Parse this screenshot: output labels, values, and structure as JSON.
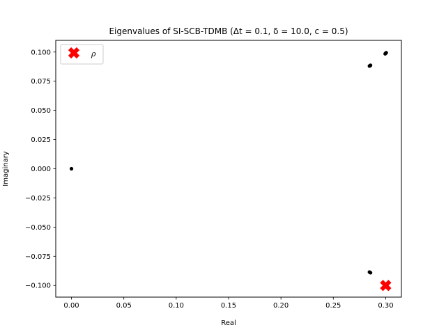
{
  "chart_data": {
    "type": "scatter",
    "title": "Eigenvalues of SI-SCB-TDMB (Δt = 0.1, δ = 10.0, c = 0.5)",
    "xlabel": "Real",
    "ylabel": "Imaginary",
    "xlim": [
      -0.015,
      0.315
    ],
    "ylim": [
      -0.11,
      0.11
    ],
    "xticks": [
      0.0,
      0.05,
      0.1,
      0.15,
      0.2,
      0.25,
      0.3
    ],
    "xtick_labels": [
      "0.00",
      "0.05",
      "0.10",
      "0.15",
      "0.20",
      "0.25",
      "0.30"
    ],
    "yticks": [
      0.1,
      0.075,
      0.05,
      0.025,
      0.0,
      -0.025,
      -0.05,
      -0.075,
      -0.1
    ],
    "ytick_labels": [
      "0.100",
      "0.075",
      "0.050",
      "0.025",
      "0.000",
      "−0.025",
      "−0.050",
      "−0.075",
      "−0.100"
    ],
    "grid": false,
    "legend_position": "top-left",
    "series": [
      {
        "type": "points",
        "color": "#000000",
        "marker": "dot",
        "points": [
          {
            "x": 0.0,
            "y": 0.0
          },
          {
            "x": 0.2845,
            "y": 0.088
          },
          {
            "x": 0.285,
            "y": 0.0883
          },
          {
            "x": 0.2855,
            "y": 0.0886
          },
          {
            "x": 0.2845,
            "y": -0.0885
          },
          {
            "x": 0.285,
            "y": -0.0888
          },
          {
            "x": 0.2855,
            "y": -0.0891
          },
          {
            "x": 0.2995,
            "y": 0.0985
          },
          {
            "x": 0.3,
            "y": 0.099
          },
          {
            "x": 0.3005,
            "y": 0.0994
          }
        ]
      },
      {
        "name": "ρ",
        "type": "points",
        "color": "#ff0000",
        "marker": "X",
        "points": [
          {
            "x": 0.3,
            "y": -0.1
          }
        ]
      }
    ]
  }
}
